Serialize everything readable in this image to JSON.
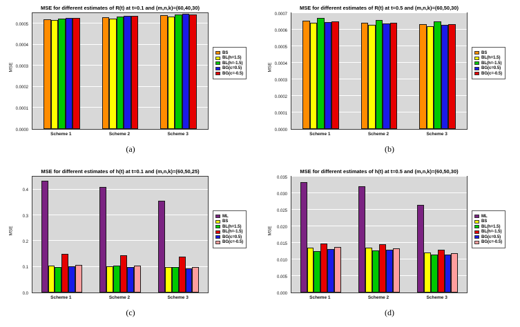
{
  "figure": {
    "captions": [
      "(a)",
      "(b)",
      "(c)",
      "(d)"
    ]
  },
  "chart_data": [
    {
      "type": "bar",
      "title": "MSE for different estimates of R(t) at t=0.1 and (m,n,k)=(60,40,30)",
      "ylabel": "MSE",
      "xlabel": "",
      "categories": [
        "Scheme 1",
        "Scheme 2",
        "Scheme 3"
      ],
      "ylim": [
        0,
        0.00055
      ],
      "yticks": [
        0,
        0.0001,
        0.0002,
        0.0003,
        0.0004,
        0.0005
      ],
      "ytick_labels": [
        "0.0000",
        "0.0001",
        "0.0002",
        "0.0003",
        "0.0004",
        "0.0005"
      ],
      "grid": true,
      "legend_position": "right",
      "plot_bg": "#d8d8d8",
      "series": [
        {
          "name": "BS",
          "color": "#FF8C00",
          "values": [
            0.000521,
            0.00053,
            0.000539
          ]
        },
        {
          "name": "BL(h=1.5)",
          "color": "#FFFF00",
          "values": [
            0.000516,
            0.000525,
            0.000535
          ]
        },
        {
          "name": "BL(h=-1.5)",
          "color": "#00C800",
          "values": [
            0.000524,
            0.000534,
            0.000543
          ]
        },
        {
          "name": "BG(c=0.5)",
          "color": "#1A1AE8",
          "values": [
            0.000528,
            0.000537,
            0.000547
          ]
        },
        {
          "name": "BG(c=-0.5)",
          "color": "#E60000",
          "values": [
            0.000526,
            0.000536,
            0.000545
          ]
        }
      ]
    },
    {
      "type": "bar",
      "title": "MSE for different estimates of R(t) at t=0.5 and (m,n,k)=(60,50,30)",
      "ylabel": "MSE",
      "xlabel": "",
      "categories": [
        "Scheme 1",
        "Scheme 2",
        "Scheme 3"
      ],
      "ylim": [
        0,
        0.0007
      ],
      "yticks": [
        0,
        0.0001,
        0.0002,
        0.0003,
        0.0004,
        0.0005,
        0.0006,
        0.0007
      ],
      "ytick_labels": [
        "0.0000",
        "0.0001",
        "0.0002",
        "0.0003",
        "0.0004",
        "0.0005",
        "0.0006",
        "0.0007"
      ],
      "grid": true,
      "legend_position": "right",
      "plot_bg": "#d8d8d8",
      "series": [
        {
          "name": "BS",
          "color": "#FF8C00",
          "values": [
            0.000655,
            0.000643,
            0.000633
          ]
        },
        {
          "name": "BL(h=1.5)",
          "color": "#FFFF00",
          "values": [
            0.000641,
            0.00063,
            0.00062
          ]
        },
        {
          "name": "BL(h=-1.5)",
          "color": "#00C800",
          "values": [
            0.000672,
            0.00066,
            0.000648
          ]
        },
        {
          "name": "BG(c=0.5)",
          "color": "#1A1AE8",
          "values": [
            0.000645,
            0.000636,
            0.000628
          ]
        },
        {
          "name": "BG(c=-0.5)",
          "color": "#E60000",
          "values": [
            0.000652,
            0.00064,
            0.000632
          ]
        }
      ]
    },
    {
      "type": "bar",
      "title": "MSE for different estimates of h(t)  at t=0.1 and (m,n,k)=(60,50,25)",
      "ylabel": "MSE",
      "xlabel": "",
      "categories": [
        "Scheme 1",
        "Scheme 2",
        "Scheme 3"
      ],
      "ylim": [
        0,
        0.45
      ],
      "yticks": [
        0,
        0.1,
        0.2,
        0.3,
        0.4
      ],
      "ytick_labels": [
        "0.0",
        "0.1",
        "0.2",
        "0.3",
        "0.4"
      ],
      "grid": true,
      "legend_position": "right",
      "plot_bg": "#d8d8d8",
      "series": [
        {
          "name": "ML",
          "color": "#7B2382",
          "values": [
            0.435,
            0.41,
            0.355
          ]
        },
        {
          "name": "BS",
          "color": "#FFFF00",
          "values": [
            0.105,
            0.101,
            0.098
          ]
        },
        {
          "name": "BL(h=1.5)",
          "color": "#00C800",
          "values": [
            0.1,
            0.104,
            0.1
          ]
        },
        {
          "name": "BL(h=-1.5)",
          "color": "#E60000",
          "values": [
            0.15,
            0.144,
            0.139
          ]
        },
        {
          "name": "BG(c=0.5)",
          "color": "#1A1AE8",
          "values": [
            0.103,
            0.1,
            0.095
          ]
        },
        {
          "name": "BG(c=-0.5)",
          "color": "#FF9E9E",
          "values": [
            0.107,
            0.104,
            0.1
          ]
        }
      ]
    },
    {
      "type": "bar",
      "title": "MSE for different estimates of h(t) at t=0.5 and (m,n,k)=(60,50,30)",
      "ylabel": "MSE",
      "xlabel": "",
      "categories": [
        "Scheme 1",
        "Scheme 2",
        "Scheme 3"
      ],
      "ylim": [
        0,
        0.035
      ],
      "yticks": [
        0,
        0.005,
        0.01,
        0.015,
        0.02,
        0.025,
        0.03,
        0.035
      ],
      "ytick_labels": [
        "0.000",
        "0.005",
        "0.010",
        "0.015",
        "0.020",
        "0.025",
        "0.030",
        "0.035"
      ],
      "grid": true,
      "legend_position": "right",
      "plot_bg": "#d8d8d8",
      "series": [
        {
          "name": "ML",
          "color": "#7B2382",
          "values": [
            0.0333,
            0.032,
            0.0265
          ]
        },
        {
          "name": "BS",
          "color": "#FFFF00",
          "values": [
            0.0136,
            0.0135,
            0.012
          ]
        },
        {
          "name": "BL(h=1.5)",
          "color": "#00C800",
          "values": [
            0.0126,
            0.0128,
            0.0114
          ]
        },
        {
          "name": "BL(h=-1.5)",
          "color": "#E60000",
          "values": [
            0.0147,
            0.0145,
            0.0129
          ]
        },
        {
          "name": "BG(c=0.5)",
          "color": "#1A1AE8",
          "values": [
            0.0131,
            0.013,
            0.0114
          ]
        },
        {
          "name": "BG(c=-0.5)",
          "color": "#FF9E9E",
          "values": [
            0.0137,
            0.0134,
            0.0119
          ]
        }
      ]
    }
  ]
}
